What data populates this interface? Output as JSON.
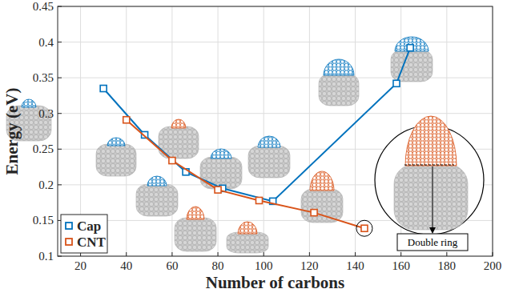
{
  "chart_data": {
    "type": "line",
    "x_label": "Number of carbons",
    "y_label": "Energy (eV)",
    "xlim": [
      10,
      200
    ],
    "xticks": [
      20,
      40,
      60,
      80,
      100,
      120,
      140,
      160,
      180,
      200
    ],
    "ylim": [
      0.1,
      0.45
    ],
    "yticks": [
      0.1,
      0.15,
      0.2,
      0.25,
      0.3,
      0.35,
      0.4,
      0.45
    ],
    "grid": true,
    "legend": "lower left",
    "marker": "square",
    "series": [
      {
        "name": "Cap",
        "color": "#0072bd",
        "x": [
          30,
          48,
          66,
          82,
          104,
          158,
          164
        ],
        "values": [
          0.335,
          0.27,
          0.218,
          0.195,
          0.177,
          0.342,
          0.392
        ]
      },
      {
        "name": "CNT",
        "color": "#d95319",
        "x": [
          40,
          60,
          80,
          98,
          122,
          144
        ],
        "values": [
          0.291,
          0.234,
          0.193,
          0.178,
          0.161,
          0.139
        ]
      }
    ],
    "annotations": [
      {
        "text": "Double ring"
      }
    ]
  }
}
